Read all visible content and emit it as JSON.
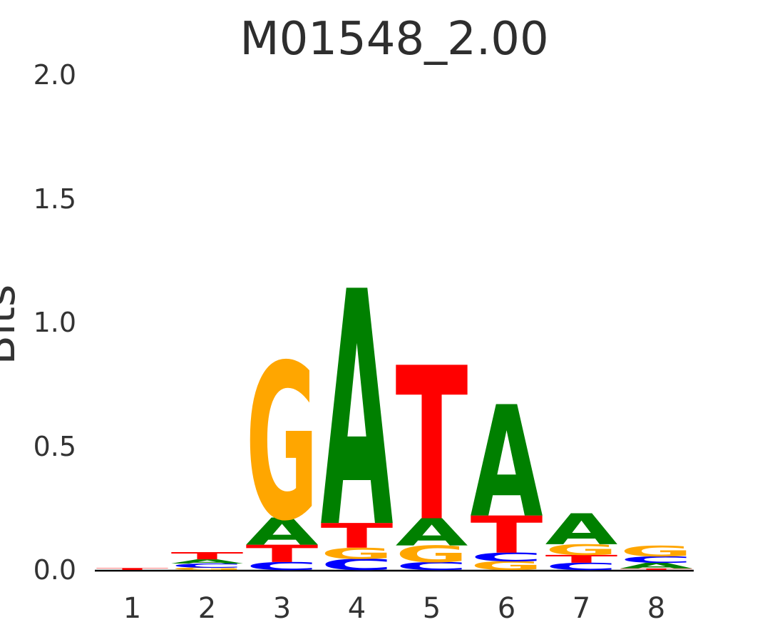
{
  "figure": {
    "background_color": "#ffffff",
    "text_color": "#333333",
    "title_color": "#2e2e2e",
    "axis_line_color": "#000000"
  },
  "chart_data": {
    "type": "sequence_logo",
    "title": "M01548_2.00",
    "xlabel": "",
    "ylabel": "Bits",
    "ylim": [
      0,
      2
    ],
    "grid": false,
    "legend": false,
    "yticks": [
      {
        "label": "0.0",
        "value": 0.0
      },
      {
        "label": "0.5",
        "value": 0.5
      },
      {
        "label": "1.0",
        "value": 1.0
      },
      {
        "label": "1.5",
        "value": 1.5
      },
      {
        "label": "2.0",
        "value": 2.0
      }
    ],
    "xticks": [
      "1",
      "2",
      "3",
      "4",
      "5",
      "6",
      "7",
      "8"
    ],
    "letter_colors": {
      "A": "#008000",
      "C": "#0000FF",
      "G": "#FFA600",
      "T": "#FF0000"
    },
    "positions": [
      {
        "position": 1,
        "stack": [
          {
            "base": "T",
            "bits": 0.008
          }
        ]
      },
      {
        "position": 2,
        "stack": [
          {
            "base": "G",
            "bits": 0.009
          },
          {
            "base": "C",
            "bits": 0.017
          },
          {
            "base": "A",
            "bits": 0.017
          },
          {
            "base": "T",
            "bits": 0.029
          }
        ]
      },
      {
        "position": 3,
        "stack": [
          {
            "base": "C",
            "bits": 0.032
          },
          {
            "base": "T",
            "bits": 0.07
          },
          {
            "base": "A",
            "bits": 0.11
          },
          {
            "base": "G",
            "bits": 0.63
          }
        ]
      },
      {
        "position": 4,
        "stack": [
          {
            "base": "C",
            "bits": 0.045
          },
          {
            "base": "G",
            "bits": 0.045
          },
          {
            "base": "T",
            "bits": 0.1
          },
          {
            "base": "A",
            "bits": 0.95
          }
        ]
      },
      {
        "position": 5,
        "stack": [
          {
            "base": "C",
            "bits": 0.032
          },
          {
            "base": "G",
            "bits": 0.067
          },
          {
            "base": "A",
            "bits": 0.11
          },
          {
            "base": "T",
            "bits": 0.62
          }
        ]
      },
      {
        "position": 6,
        "stack": [
          {
            "base": "G",
            "bits": 0.035
          },
          {
            "base": "C",
            "bits": 0.035
          },
          {
            "base": "T",
            "bits": 0.15
          },
          {
            "base": "A",
            "bits": 0.45
          }
        ]
      },
      {
        "position": 7,
        "stack": [
          {
            "base": "C",
            "bits": 0.029
          },
          {
            "base": "T",
            "bits": 0.032
          },
          {
            "base": "G",
            "bits": 0.043
          },
          {
            "base": "A",
            "bits": 0.125
          }
        ]
      },
      {
        "position": 8,
        "stack": [
          {
            "base": "T",
            "bits": 0.006
          },
          {
            "base": "A",
            "bits": 0.023
          },
          {
            "base": "C",
            "bits": 0.026
          },
          {
            "base": "G",
            "bits": 0.043
          }
        ]
      }
    ]
  }
}
